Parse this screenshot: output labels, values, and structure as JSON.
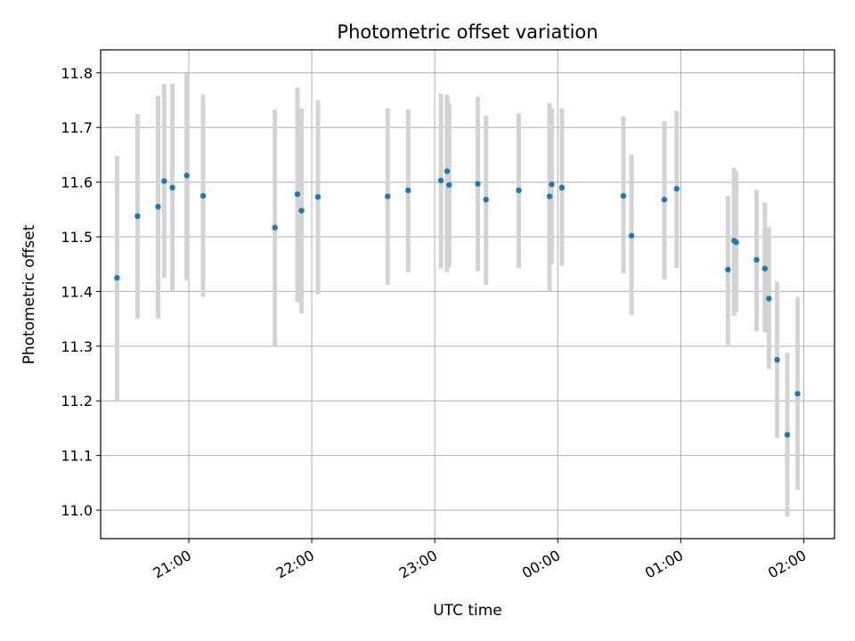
{
  "chart_data": {
    "type": "scatter",
    "title": "Photometric offset variation",
    "xlabel": "UTC time",
    "ylabel": "Photometric offset",
    "x_ticks": [
      "21:00",
      "22:00",
      "23:00",
      "00:00",
      "01:00",
      "02:00"
    ],
    "y_ticks": [
      "11.0",
      "11.1",
      "11.2",
      "11.3",
      "11.4",
      "11.5",
      "11.6",
      "11.7",
      "11.8"
    ],
    "xlim": [
      "20:17",
      "02:15"
    ],
    "ylim": [
      10.948,
      11.842
    ],
    "grid": true,
    "error_bars": true,
    "colors": {
      "point": "#1f77b4",
      "error_bar": "#d3d3d3",
      "grid": "#b0b0b0",
      "axes": "#000000"
    },
    "points": [
      {
        "t": "20:25",
        "y": 11.425,
        "lo": 11.2,
        "hi": 11.648
      },
      {
        "t": "20:35",
        "y": 11.538,
        "lo": 11.35,
        "hi": 11.725
      },
      {
        "t": "20:45",
        "y": 11.555,
        "lo": 11.35,
        "hi": 11.758
      },
      {
        "t": "20:48",
        "y": 11.602,
        "lo": 11.425,
        "hi": 11.78
      },
      {
        "t": "20:52",
        "y": 11.59,
        "lo": 11.4,
        "hi": 11.78
      },
      {
        "t": "20:59",
        "y": 11.612,
        "lo": 11.42,
        "hi": 11.8
      },
      {
        "t": "21:07",
        "y": 11.575,
        "lo": 11.39,
        "hi": 11.76
      },
      {
        "t": "21:42",
        "y": 11.517,
        "lo": 11.3,
        "hi": 11.732
      },
      {
        "t": "21:53",
        "y": 11.578,
        "lo": 11.38,
        "hi": 11.773
      },
      {
        "t": "21:55",
        "y": 11.548,
        "lo": 11.36,
        "hi": 11.735
      },
      {
        "t": "22:03",
        "y": 11.573,
        "lo": 11.395,
        "hi": 11.75
      },
      {
        "t": "22:37",
        "y": 11.574,
        "lo": 11.412,
        "hi": 11.735
      },
      {
        "t": "22:47",
        "y": 11.585,
        "lo": 11.435,
        "hi": 11.733
      },
      {
        "t": "23:03",
        "y": 11.603,
        "lo": 11.442,
        "hi": 11.762
      },
      {
        "t": "23:06",
        "y": 11.62,
        "lo": 11.435,
        "hi": 11.76
      },
      {
        "t": "23:07",
        "y": 11.595,
        "lo": 11.445,
        "hi": 11.745
      },
      {
        "t": "23:21",
        "y": 11.597,
        "lo": 11.437,
        "hi": 11.756
      },
      {
        "t": "23:25",
        "y": 11.568,
        "lo": 11.412,
        "hi": 11.722
      },
      {
        "t": "23:41",
        "y": 11.585,
        "lo": 11.443,
        "hi": 11.726
      },
      {
        "t": "23:56",
        "y": 11.574,
        "lo": 11.4,
        "hi": 11.745
      },
      {
        "t": "23:57",
        "y": 11.596,
        "lo": 11.45,
        "hi": 11.735
      },
      {
        "t": "00:02",
        "y": 11.59,
        "lo": 11.447,
        "hi": 11.735
      },
      {
        "t": "00:32",
        "y": 11.575,
        "lo": 11.433,
        "hi": 11.72
      },
      {
        "t": "00:36",
        "y": 11.502,
        "lo": 11.357,
        "hi": 11.65
      },
      {
        "t": "00:52",
        "y": 11.568,
        "lo": 11.422,
        "hi": 11.712
      },
      {
        "t": "00:58",
        "y": 11.588,
        "lo": 11.443,
        "hi": 11.73
      },
      {
        "t": "01:23",
        "y": 11.44,
        "lo": 11.302,
        "hi": 11.575
      },
      {
        "t": "01:26",
        "y": 11.493,
        "lo": 11.355,
        "hi": 11.626
      },
      {
        "t": "01:27",
        "y": 11.49,
        "lo": 11.362,
        "hi": 11.62
      },
      {
        "t": "01:37",
        "y": 11.458,
        "lo": 11.327,
        "hi": 11.586
      },
      {
        "t": "01:41",
        "y": 11.442,
        "lo": 11.325,
        "hi": 11.563
      },
      {
        "t": "01:43",
        "y": 11.387,
        "lo": 11.258,
        "hi": 11.518
      },
      {
        "t": "01:47",
        "y": 11.275,
        "lo": 11.132,
        "hi": 11.418
      },
      {
        "t": "01:52",
        "y": 11.138,
        "lo": 10.988,
        "hi": 11.288
      },
      {
        "t": "01:57",
        "y": 11.213,
        "lo": 11.037,
        "hi": 11.39
      }
    ]
  }
}
